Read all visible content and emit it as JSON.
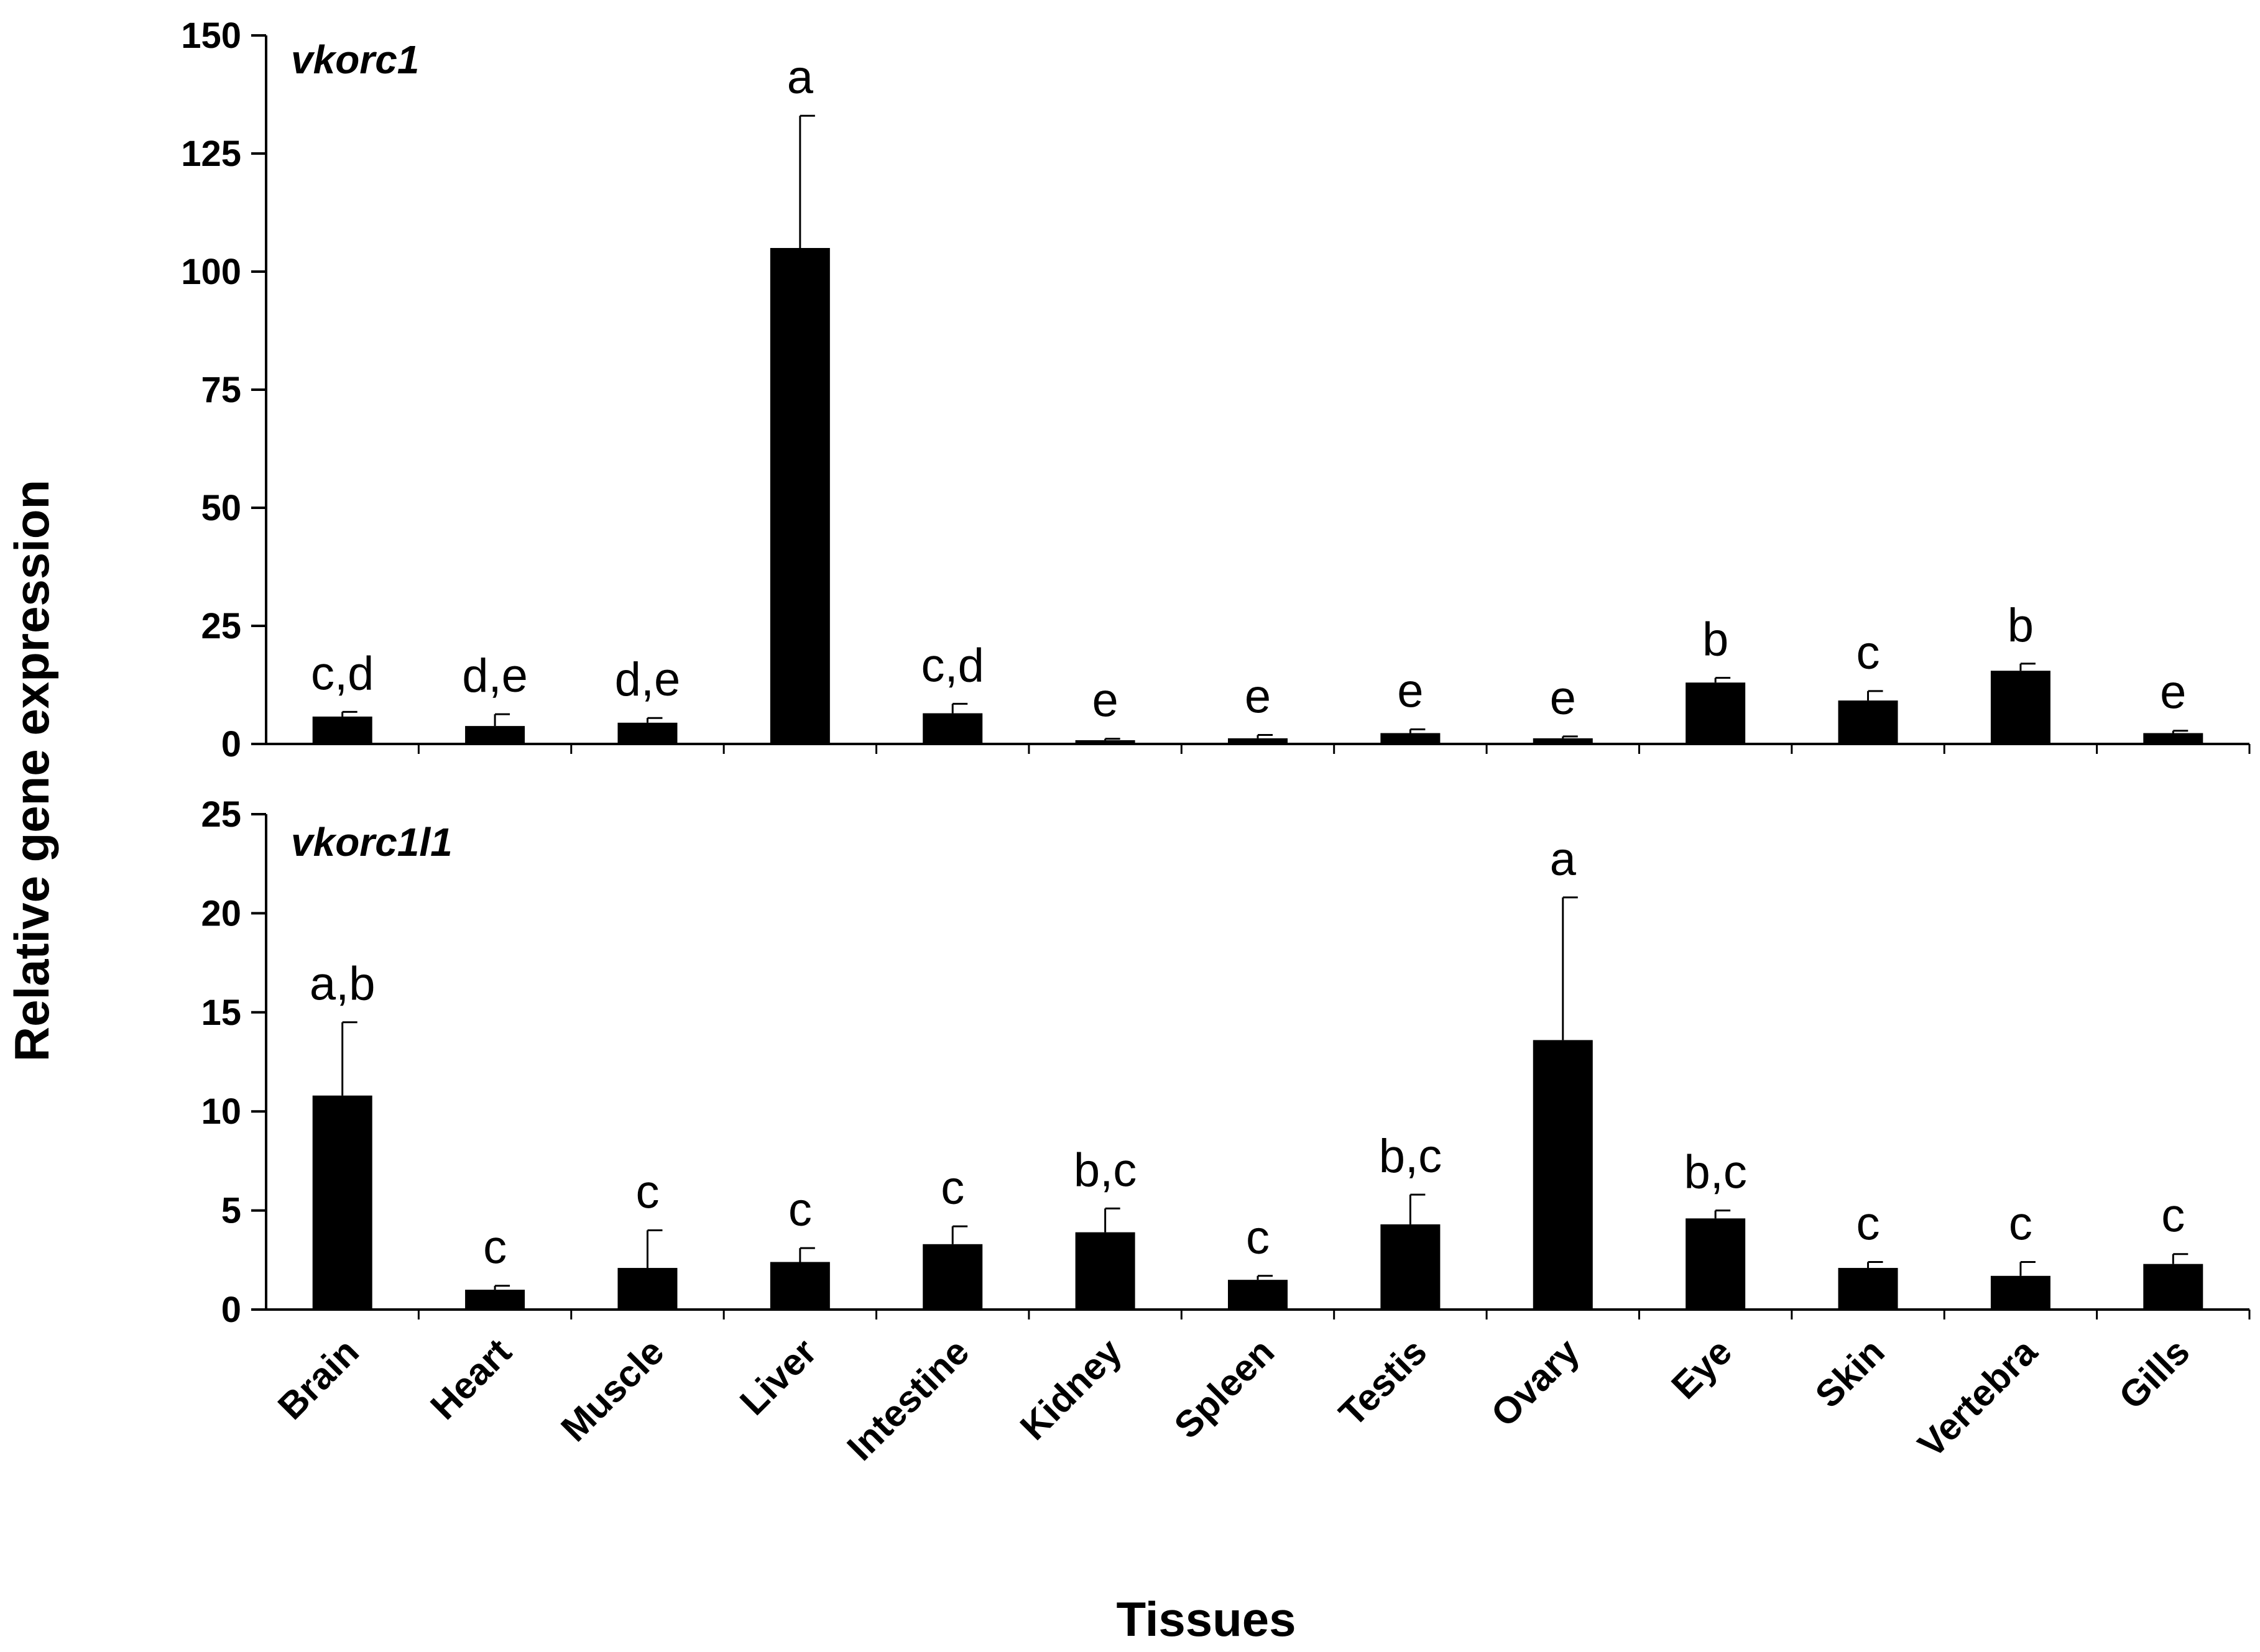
{
  "chart_data": {
    "type": "bar",
    "ylabel": "Relative gene expression",
    "xlabel": "Tissues",
    "categories": [
      "Brain",
      "Heart",
      "Muscle",
      "Liver",
      "Intestine",
      "Kidney",
      "Spleen",
      "Testis",
      "Ovary",
      "Eye",
      "Skin",
      "Vertebra",
      "Gills"
    ],
    "panels": [
      {
        "title": "vkorc1",
        "ylim": [
          0,
          150
        ],
        "yticks": [
          0,
          25,
          50,
          75,
          100,
          125,
          150
        ],
        "values": [
          5.8,
          3.8,
          4.5,
          105,
          6.5,
          0.8,
          1.2,
          2.3,
          1.2,
          13,
          9.2,
          15.5,
          2.3
        ],
        "errors": [
          1.0,
          2.5,
          1.0,
          28,
          2.0,
          0.3,
          0.7,
          0.8,
          0.4,
          1.0,
          2.0,
          1.5,
          0.5
        ],
        "letters": [
          "c,d",
          "d,e",
          "d,e",
          "a",
          "c,d",
          "e",
          "e",
          "e",
          "e",
          "b",
          "c",
          "b",
          "e"
        ]
      },
      {
        "title": "vkorc1l1",
        "ylim": [
          0,
          25
        ],
        "yticks": [
          0,
          5,
          10,
          15,
          20,
          25
        ],
        "values": [
          10.8,
          1.0,
          2.1,
          2.4,
          3.3,
          3.9,
          1.5,
          4.3,
          13.6,
          4.6,
          2.1,
          1.7,
          2.3
        ],
        "errors": [
          3.7,
          0.2,
          1.9,
          0.7,
          0.9,
          1.2,
          0.2,
          1.5,
          7.2,
          0.4,
          0.3,
          0.7,
          0.5
        ],
        "letters": [
          "a,b",
          "c",
          "c",
          "c",
          "c",
          "b,c",
          "c",
          "b,c",
          "a",
          "b,c",
          "c",
          "c",
          "c"
        ]
      }
    ]
  }
}
